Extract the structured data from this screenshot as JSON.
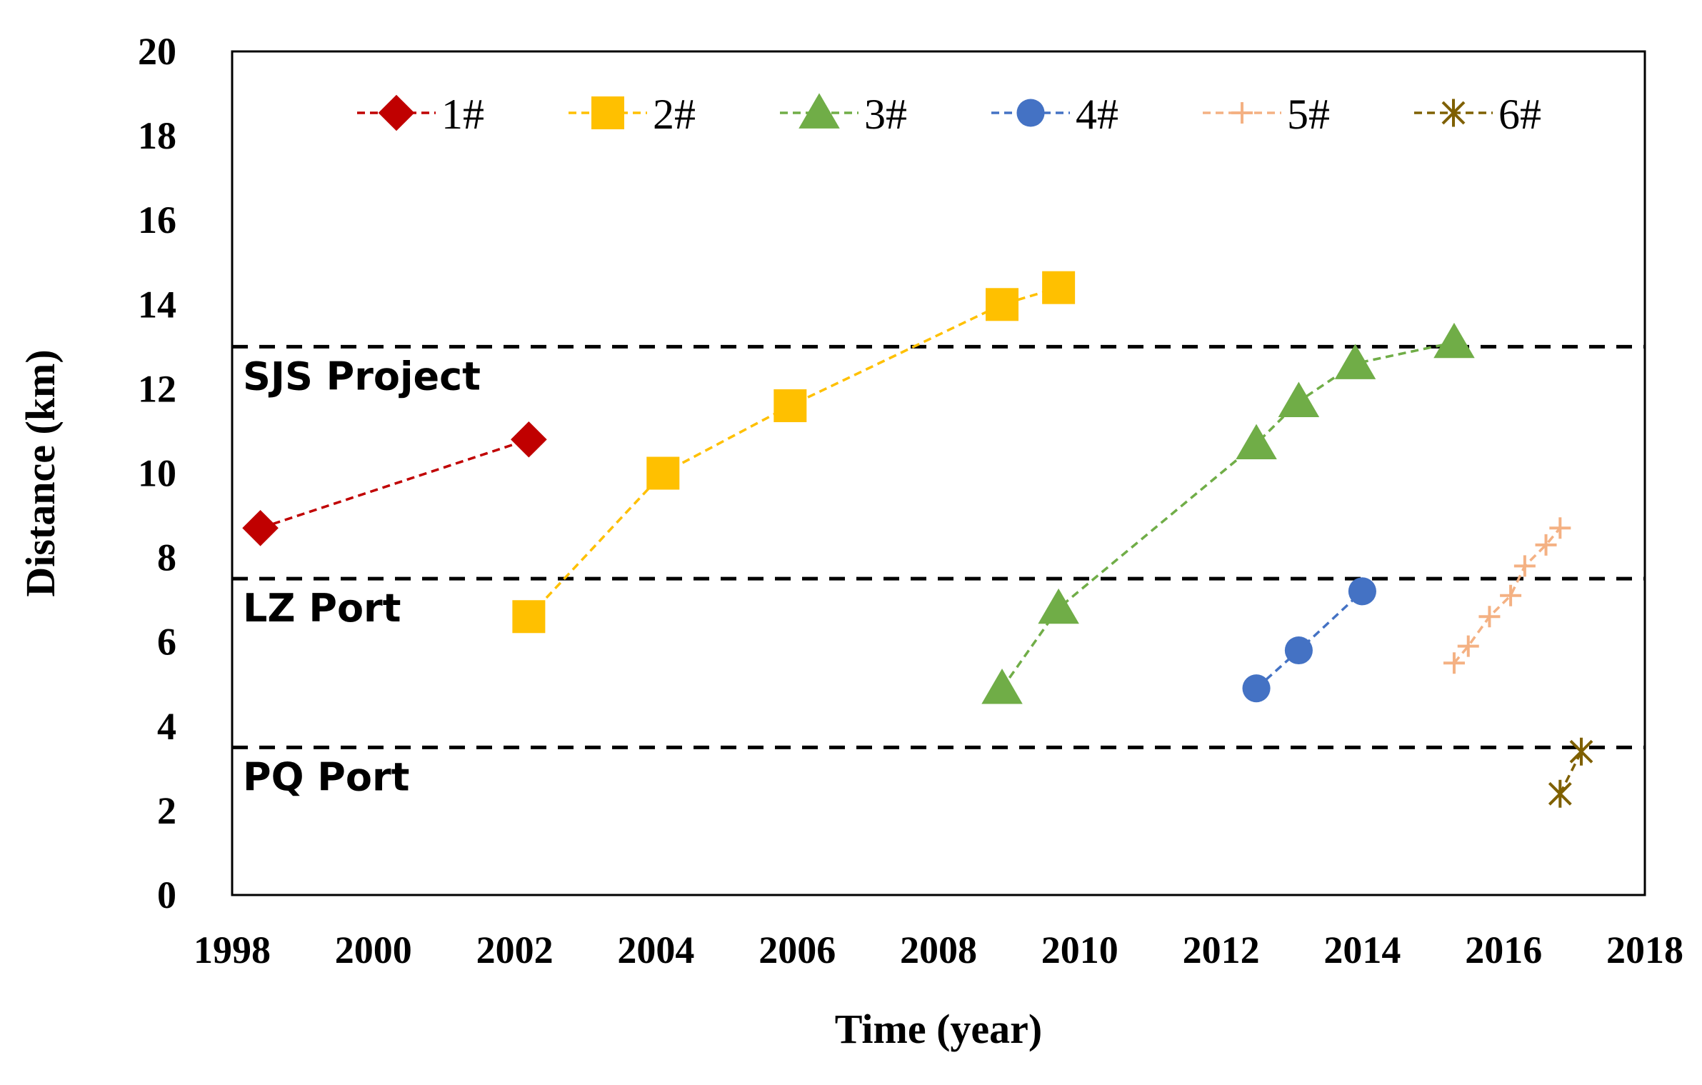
{
  "chart_data": {
    "type": "line",
    "title": "",
    "xlabel": "Time (year)",
    "ylabel": "Distance (km)",
    "xlim": [
      1998,
      2018
    ],
    "ylim": [
      0,
      20
    ],
    "xticks": [
      "1998",
      "2000",
      "2002",
      "2004",
      "2006",
      "2008",
      "2010",
      "2012",
      "2014",
      "2016",
      "2018"
    ],
    "yticks": [
      "0",
      "2",
      "4",
      "6",
      "8",
      "10",
      "12",
      "14",
      "16",
      "18",
      "20"
    ],
    "grid": false,
    "legend_position": "top",
    "series": [
      {
        "name": "1#",
        "marker": "diamond",
        "color": "#c00000",
        "x": [
          1998.4,
          2002.2
        ],
        "y": [
          8.7,
          10.8
        ]
      },
      {
        "name": "2#",
        "marker": "square",
        "color": "#ffc000",
        "x": [
          2002.2,
          2004.1,
          2005.9,
          2008.9,
          2009.7
        ],
        "y": [
          6.6,
          10.0,
          11.6,
          14.0,
          14.4
        ]
      },
      {
        "name": "3#",
        "marker": "triangle",
        "color": "#70ad47",
        "x": [
          2008.9,
          2009.7,
          2012.5,
          2013.1,
          2013.9,
          2015.3
        ],
        "y": [
          4.9,
          6.8,
          10.7,
          11.7,
          12.6,
          13.1
        ]
      },
      {
        "name": "4#",
        "marker": "circle",
        "color": "#4472c4",
        "x": [
          2012.5,
          2013.1,
          2014.0
        ],
        "y": [
          4.9,
          5.8,
          7.2
        ]
      },
      {
        "name": "5#",
        "marker": "plus",
        "color": "#f4b183",
        "x": [
          2015.3,
          2015.5,
          2015.8,
          2016.1,
          2016.3,
          2016.6,
          2016.8
        ],
        "y": [
          5.5,
          5.9,
          6.6,
          7.1,
          7.8,
          8.3,
          8.7
        ]
      },
      {
        "name": "6#",
        "marker": "star",
        "color": "#7f6000",
        "x": [
          2016.8,
          2017.1
        ],
        "y": [
          2.4,
          3.4
        ]
      }
    ],
    "reference_lines": [
      {
        "label": "SJS Project",
        "y": 13.0
      },
      {
        "label": "LZ Port",
        "y": 7.5
      },
      {
        "label": "PQ Port",
        "y": 3.5
      }
    ]
  }
}
